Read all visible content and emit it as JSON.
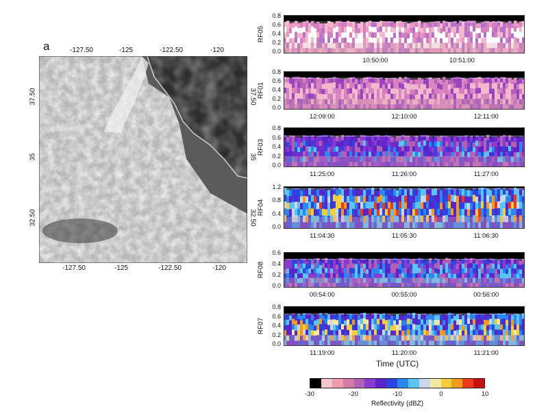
{
  "panel_letter": "a",
  "map": {
    "top_lon_labels": [
      "-127.50",
      "-125",
      "-122.50",
      "-120"
    ],
    "bottom_lon_labels": [
      "-127.50",
      "-125",
      "-122.50",
      "-120"
    ],
    "left_lat_labels": [
      "37.50",
      "35",
      "32.50"
    ],
    "right_lat_labels": [
      "37.50",
      "35",
      "32.50"
    ]
  },
  "strips": [
    {
      "flight": "RF05",
      "yticks": [
        "0.0",
        "0.2",
        "0.4",
        "0.6",
        "0.8"
      ],
      "xticks": [
        "10:50:00",
        "10:51:00"
      ]
    },
    {
      "flight": "RF01",
      "yticks": [
        "0.0",
        "0.2",
        "0.4",
        "0.6",
        "0.8"
      ],
      "xticks": [
        "12:09:00",
        "12:10:00",
        "12:11:00"
      ]
    },
    {
      "flight": "RF03",
      "yticks": [
        "0.0",
        "0.2",
        "0.4",
        "0.6",
        "0.8"
      ],
      "xticks": [
        "11:25:00",
        "11:26:00",
        "11:27:00"
      ]
    },
    {
      "flight": "RF04",
      "yticks": [
        "0.0",
        "0.4",
        "0.8",
        "1.2"
      ],
      "xticks": [
        "11:04:30",
        "11:05:30",
        "11:06:30"
      ]
    },
    {
      "flight": "RF08",
      "yticks": [
        "0.0",
        "0.2",
        "0.4",
        "0.6"
      ],
      "xticks": [
        "00:54:00",
        "00:55:00",
        "00:56:00"
      ]
    },
    {
      "flight": "RF07",
      "yticks": [
        "0.0",
        "0.2",
        "0.4",
        "0.6",
        "0.8"
      ],
      "xticks": [
        "11:19:00",
        "11:20:00",
        "11:21:00"
      ]
    }
  ],
  "x_axis_title": "Time (UTC)",
  "colorbar": {
    "ticks": [
      "-30",
      "-20",
      "-10",
      "0",
      "10"
    ],
    "label": "Reflectivity (dBZ)",
    "colors": [
      "#000000",
      "#f7c6cc",
      "#ee9bac",
      "#d47aa6",
      "#b35fb4",
      "#8a3ad0",
      "#5a24c8",
      "#2d44e0",
      "#2b86f0",
      "#5ac4f4",
      "#c8d8e8",
      "#f4e9a0",
      "#f6cd3a",
      "#f49a1c",
      "#ee3a1a",
      "#c81010"
    ]
  }
}
